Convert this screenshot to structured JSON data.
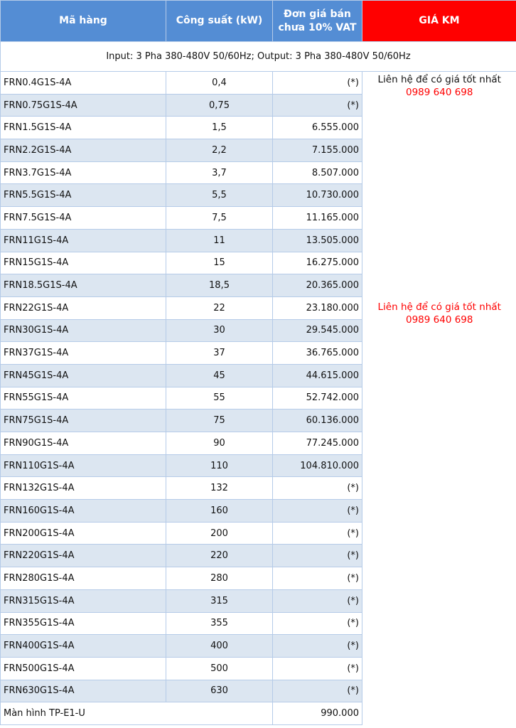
{
  "header": {
    "col1": "Mã hàng",
    "col2": "Công suất (kW)",
    "col3": "Đơn giá bán chưa 10% VAT",
    "col4": "GIÁ KM"
  },
  "info": "Input: 3 Pha 380-480V 50/60Hz; Output: 3 Pha 380-480V 50/60Hz",
  "notes": [
    {
      "text": "Liên hệ để có giá tốt nhất",
      "phone": "0989 640 698"
    },
    {
      "text": "Liên hệ để có giá tốt nhất",
      "phone": "0989 640 698"
    }
  ],
  "rows": [
    [
      "FRN0.4G1S-4A",
      "0,4",
      "(*)"
    ],
    [
      "FRN0.75G1S-4A",
      "0,75",
      "(*)"
    ],
    [
      "FRN1.5G1S-4A",
      "1,5",
      "6.555.000"
    ],
    [
      "FRN2.2G1S-4A",
      "2,2",
      "7.155.000"
    ],
    [
      "FRN3.7G1S-4A",
      "3,7",
      "8.507.000"
    ],
    [
      "FRN5.5G1S-4A",
      "5,5",
      "10.730.000"
    ],
    [
      "FRN7.5G1S-4A",
      "7,5",
      "11.165.000"
    ],
    [
      "FRN11G1S-4A",
      "11",
      "13.505.000"
    ],
    [
      "FRN15G1S-4A",
      "15",
      "16.275.000"
    ],
    [
      "FRN18.5G1S-4A",
      "18,5",
      "20.365.000"
    ],
    [
      "FRN22G1S-4A",
      "22",
      "23.180.000"
    ],
    [
      "FRN30G1S-4A",
      "30",
      "29.545.000"
    ],
    [
      "FRN37G1S-4A",
      "37",
      "36.765.000"
    ],
    [
      "FRN45G1S-4A",
      "45",
      "44.615.000"
    ],
    [
      "FRN55G1S-4A",
      "55",
      "52.742.000"
    ],
    [
      "FRN75G1S-4A",
      "75",
      "60.136.000"
    ],
    [
      "FRN90G1S-4A",
      "90",
      "77.245.000"
    ],
    [
      "FRN110G1S-4A",
      "110",
      "104.810.000"
    ],
    [
      "FRN132G1S-4A",
      "132",
      "(*)"
    ],
    [
      "FRN160G1S-4A",
      "160",
      "(*)"
    ],
    [
      "FRN200G1S-4A",
      "200",
      "(*)"
    ],
    [
      "FRN220G1S-4A",
      "220",
      "(*)"
    ],
    [
      "FRN280G1S-4A",
      "280",
      "(*)"
    ],
    [
      "FRN315G1S-4A",
      "315",
      "(*)"
    ],
    [
      "FRN355G1S-4A",
      "355",
      "(*)"
    ],
    [
      "FRN400G1S-4A",
      "400",
      "(*)"
    ],
    [
      "FRN500G1S-4A",
      "500",
      "(*)"
    ],
    [
      "FRN630G1S-4A",
      "630",
      "(*)"
    ]
  ],
  "footer": {
    "label": "Màn hình TP-E1-U",
    "price": "990.000"
  },
  "colors": {
    "header": "#548dd4",
    "km": "#ff0000",
    "alt_row": "#dce6f1"
  }
}
